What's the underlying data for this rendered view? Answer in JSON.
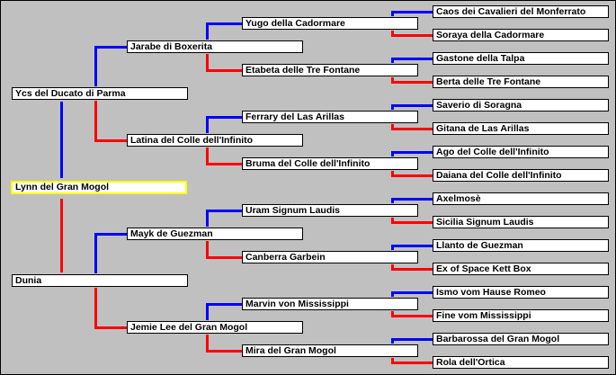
{
  "colors": {
    "sire_line": "#0000ff",
    "dam_line": "#ff0000",
    "subject_border": "#ffff00",
    "background": "#c0c0c0"
  },
  "subject": "Lynn del Gran Mogol",
  "generations": [
    [
      "Ycs del Ducato di Parma",
      "Dunia"
    ],
    [
      "Jarabe di Boxerita",
      "Latina del Colle dell'Infinito",
      "Mayk de Guezman",
      "Jemie Lee del Gran Mogol"
    ],
    [
      "Yugo della Cadormare",
      "Etabeta delle Tre Fontane",
      "Ferrary del Las Arillas",
      "Bruma del Colle dell'Infinito",
      "Uram Signum Laudis",
      "Canberra Garbein",
      "Marvin von Mississippi",
      "Mira del Gran Mogol"
    ],
    [
      "Caos dei Cavalieri del Monferrato",
      "Soraya della Cadormare",
      "Gastone della Talpa",
      "Berta delle Tre Fontane",
      "Saverio di Soragna",
      "Gitana de Las Arillas",
      "Ago del Colle dell'Infinito",
      "Daiana del Colle dell'Infinito",
      "Axelmosè",
      "Sicilia Signum Laudis",
      "Llanto de Guezman",
      "Ex of Space Kett Box",
      "Ismo vom Hause Romeo",
      "Fine vom Mississippi",
      "Barbarossa del Gran Mogol",
      "Rola dell'Ortica"
    ]
  ]
}
